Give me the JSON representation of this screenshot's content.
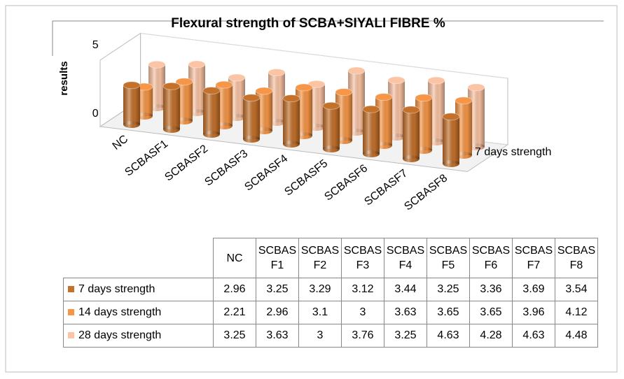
{
  "chart_data": {
    "type": "bar3d",
    "title": "Flexural strength of SCBA+SIYALI FIBRE %",
    "y_label": "results",
    "categories": [
      "NC",
      "SCBASF1",
      "SCBASF2",
      "SCBASF3",
      "SCBASF4",
      "SCBASF5",
      "SCBASF6",
      "SCBASF7",
      "SCBASF8"
    ],
    "series": [
      {
        "name": "7 days strength",
        "color": "#c4712b",
        "values": [
          2.96,
          3.25,
          3.29,
          3.12,
          3.44,
          3.25,
          3.36,
          3.69,
          3.54
        ]
      },
      {
        "name": "14 days strength",
        "color": "#f79646",
        "values": [
          2.21,
          2.96,
          3.1,
          3,
          3.63,
          3.65,
          3.65,
          3.96,
          4.12
        ]
      },
      {
        "name": "28 days strength",
        "color": "#fbc4a4",
        "values": [
          3.25,
          3.63,
          3,
          3.76,
          3.25,
          4.63,
          4.28,
          4.63,
          4.48
        ]
      }
    ],
    "ylim": [
      0,
      5
    ],
    "yticks": [
      0,
      5
    ]
  }
}
